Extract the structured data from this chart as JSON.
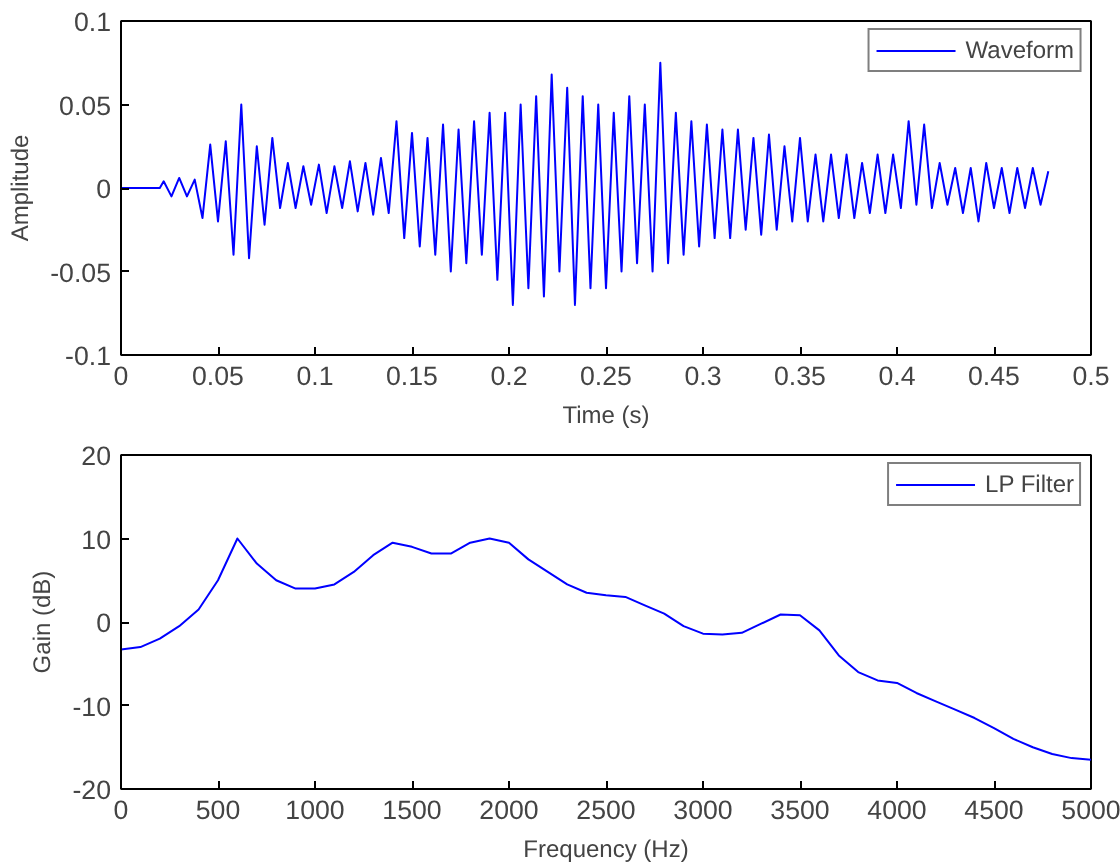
{
  "chart_data": [
    {
      "type": "line",
      "xlabel": "Time (s)",
      "ylabel": "Amplitude",
      "legend": "top right",
      "grid": false,
      "xlim": [
        0,
        0.5
      ],
      "ylim": [
        -0.1,
        0.1
      ],
      "xticks": [
        0,
        0.05,
        0.1,
        0.15,
        0.2,
        0.25,
        0.3,
        0.35,
        0.4,
        0.45,
        0.5
      ],
      "yticks": [
        -0.1,
        -0.05,
        0,
        0.05,
        0.1
      ],
      "x": [
        0,
        0.02,
        0.022,
        0.026,
        0.03,
        0.034,
        0.038,
        0.042,
        0.046,
        0.05,
        0.054,
        0.058,
        0.062,
        0.066,
        0.07,
        0.074,
        0.078,
        0.082,
        0.086,
        0.09,
        0.094,
        0.098,
        0.102,
        0.106,
        0.11,
        0.114,
        0.118,
        0.122,
        0.126,
        0.13,
        0.134,
        0.138,
        0.142,
        0.146,
        0.15,
        0.154,
        0.158,
        0.162,
        0.166,
        0.17,
        0.174,
        0.178,
        0.182,
        0.186,
        0.19,
        0.194,
        0.198,
        0.202,
        0.206,
        0.21,
        0.214,
        0.218,
        0.222,
        0.226,
        0.23,
        0.234,
        0.238,
        0.242,
        0.246,
        0.25,
        0.254,
        0.258,
        0.262,
        0.266,
        0.27,
        0.274,
        0.278,
        0.282,
        0.286,
        0.29,
        0.294,
        0.298,
        0.302,
        0.306,
        0.31,
        0.314,
        0.318,
        0.322,
        0.326,
        0.33,
        0.334,
        0.338,
        0.342,
        0.346,
        0.35,
        0.354,
        0.358,
        0.362,
        0.366,
        0.37,
        0.374,
        0.378,
        0.382,
        0.386,
        0.39,
        0.394,
        0.398,
        0.402,
        0.406,
        0.41,
        0.414,
        0.418,
        0.422,
        0.426,
        0.43,
        0.434,
        0.438,
        0.442,
        0.446,
        0.45,
        0.454,
        0.458,
        0.462,
        0.466,
        0.47,
        0.474,
        0.478
      ],
      "series": [
        {
          "name": "Waveform",
          "color": "#0000ff",
          "values": [
            0,
            0,
            0.004,
            -0.005,
            0.006,
            -0.005,
            0.005,
            -0.018,
            0.026,
            -0.02,
            0.028,
            -0.04,
            0.05,
            -0.042,
            0.025,
            -0.022,
            0.03,
            -0.012,
            0.015,
            -0.012,
            0.013,
            -0.01,
            0.014,
            -0.015,
            0.013,
            -0.012,
            0.016,
            -0.014,
            0.015,
            -0.016,
            0.018,
            -0.015,
            0.04,
            -0.03,
            0.033,
            -0.035,
            0.03,
            -0.04,
            0.038,
            -0.05,
            0.035,
            -0.045,
            0.04,
            -0.04,
            0.045,
            -0.055,
            0.045,
            -0.07,
            0.05,
            -0.06,
            0.055,
            -0.065,
            0.068,
            -0.05,
            0.06,
            -0.07,
            0.055,
            -0.06,
            0.05,
            -0.06,
            0.045,
            -0.05,
            0.055,
            -0.045,
            0.05,
            -0.05,
            0.075,
            -0.045,
            0.045,
            -0.04,
            0.04,
            -0.035,
            0.038,
            -0.03,
            0.035,
            -0.03,
            0.035,
            -0.025,
            0.03,
            -0.028,
            0.032,
            -0.025,
            0.025,
            -0.02,
            0.03,
            -0.02,
            0.02,
            -0.02,
            0.02,
            -0.018,
            0.02,
            -0.018,
            0.015,
            -0.015,
            0.02,
            -0.015,
            0.02,
            -0.012,
            0.04,
            -0.01,
            0.038,
            -0.012,
            0.015,
            -0.01,
            0.012,
            -0.015,
            0.012,
            -0.02,
            0.015,
            -0.012,
            0.012,
            -0.015,
            0.012,
            -0.012,
            0.012,
            -0.01,
            0.01
          ]
        }
      ]
    },
    {
      "type": "line",
      "xlabel": "Frequency (Hz)",
      "ylabel": "Gain (dB)",
      "legend": "top right",
      "grid": false,
      "xlim": [
        0,
        5000
      ],
      "ylim": [
        -20,
        20
      ],
      "xticks": [
        0,
        500,
        1000,
        1500,
        2000,
        2500,
        3000,
        3500,
        4000,
        4500,
        5000
      ],
      "yticks": [
        -20,
        -10,
        0,
        10,
        20
      ],
      "x": [
        0,
        100,
        200,
        300,
        400,
        500,
        600,
        700,
        800,
        900,
        1000,
        1100,
        1200,
        1300,
        1400,
        1500,
        1600,
        1700,
        1800,
        1900,
        2000,
        2100,
        2200,
        2300,
        2400,
        2500,
        2600,
        2700,
        2800,
        2900,
        3000,
        3100,
        3200,
        3300,
        3400,
        3500,
        3600,
        3700,
        3800,
        3900,
        4000,
        4100,
        4200,
        4300,
        4400,
        4500,
        4600,
        4700,
        4800,
        4900,
        5000
      ],
      "series": [
        {
          "name": "LP Filter",
          "color": "#0000ff",
          "values": [
            -3.3,
            -3,
            -2,
            -0.5,
            1.5,
            5,
            10,
            7,
            5,
            4,
            4,
            4.5,
            6,
            8,
            9.5,
            9,
            8.2,
            8.2,
            9.5,
            10,
            9.5,
            7.5,
            6,
            4.5,
            3.5,
            3.2,
            3,
            2,
            1,
            -0.5,
            -1.4,
            -1.5,
            -1.3,
            -0.2,
            0.9,
            0.8,
            -1,
            -4,
            -6,
            -7,
            -7.3,
            -8.5,
            -9.5,
            -10.5,
            -11.5,
            -12.7,
            -14,
            -15,
            -15.8,
            -16.3,
            -16.5
          ]
        }
      ]
    }
  ]
}
